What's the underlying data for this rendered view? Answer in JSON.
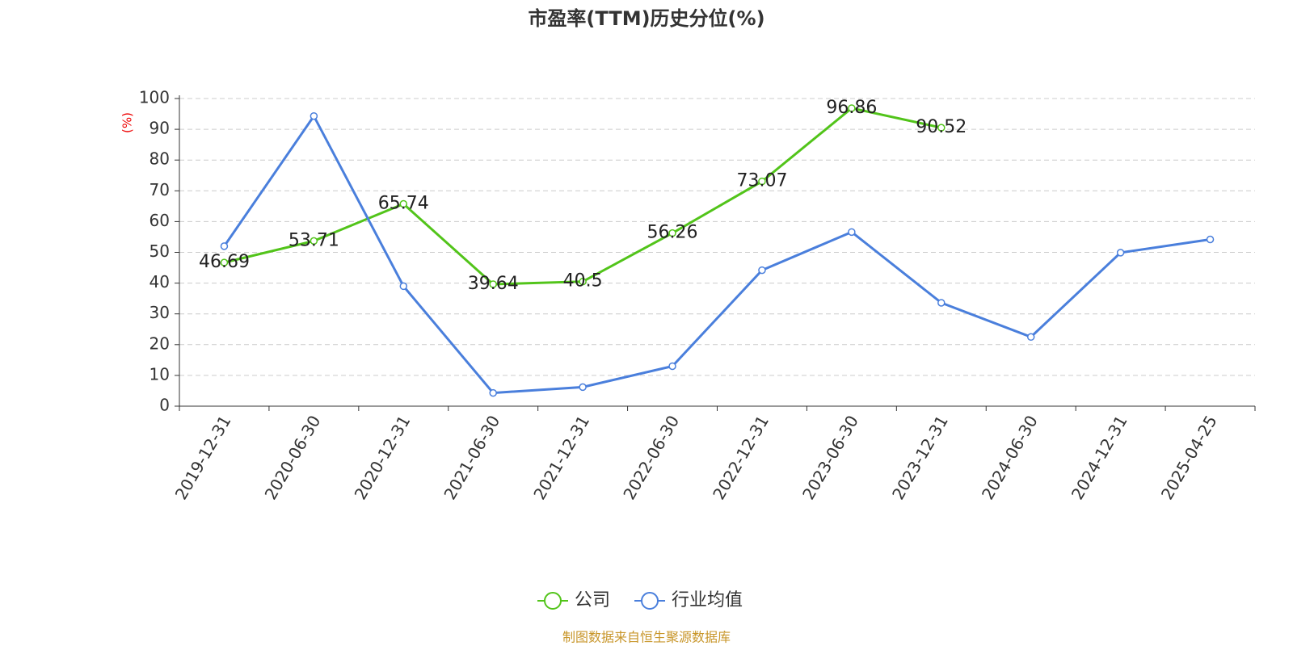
{
  "chart_data": {
    "type": "line",
    "title": "市盈率(TTM)历史分位(%)",
    "y_label": "(%)",
    "source": "制图数据来自恒生聚源数据库",
    "categories": [
      "2019-12-31",
      "2020-06-30",
      "2020-12-31",
      "2021-06-30",
      "2021-12-31",
      "2022-06-30",
      "2022-12-31",
      "2023-06-30",
      "2023-12-31",
      "2024-06-30",
      "2024-12-31",
      "2025-04-25"
    ],
    "series": [
      {
        "name": "公司",
        "color": "#52c41a",
        "values": [
          46.69,
          53.71,
          65.74,
          39.64,
          40.5,
          56.26,
          73.07,
          96.86,
          90.52,
          null,
          null,
          null
        ],
        "show_labels": true
      },
      {
        "name": "行业均值",
        "color": "#4a7fdc",
        "values": [
          52.0,
          94.3,
          39.0,
          4.3,
          6.2,
          13.0,
          44.2,
          56.6,
          33.6,
          22.5,
          49.9,
          54.2
        ],
        "show_labels": false
      }
    ],
    "ylim": [
      0,
      100
    ],
    "yticks": [
      0,
      10,
      20,
      30,
      40,
      50,
      60,
      70,
      80,
      90,
      100
    ],
    "grid": true,
    "legend": "bottom"
  }
}
